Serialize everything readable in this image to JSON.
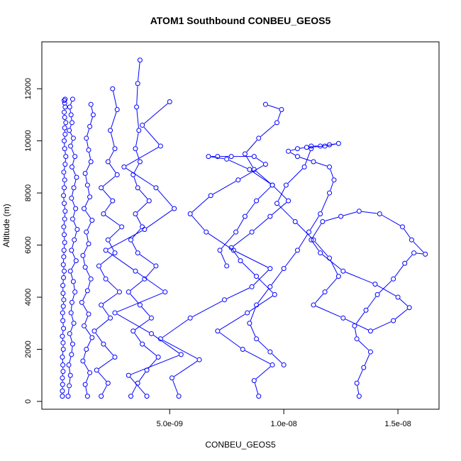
{
  "chart_data": {
    "type": "scatter",
    "title": "ATOM1 Southbound CONBEU_GEOS5",
    "xlabel": "CONBEU_GEOS5",
    "ylabel": "Altitude (m)",
    "xlim": [
      -6e-10,
      1.68e-08
    ],
    "ylim": [
      -300,
      13800
    ],
    "x_ticks": [
      5e-09,
      1e-08,
      1.5e-08
    ],
    "x_tick_labels": [
      "5.0e-09",
      "1.0e-08",
      "1.5e-08"
    ],
    "y_ticks": [
      0,
      2000,
      4000,
      6000,
      8000,
      10000,
      12000
    ],
    "y_tick_labels": [
      "0",
      "2000",
      "4000",
      "6000",
      "8000",
      "10000",
      "12000"
    ],
    "grid": false,
    "marker": "open-circle",
    "line_style": "connected",
    "color": "#0000FF",
    "series": [
      {
        "x": [
          3e-10,
          3e-10,
          3.1e-10,
          3e-10,
          3.3e-10,
          3.2e-10,
          3e-10,
          3.4e-10,
          3.3e-10,
          3e-10,
          3.5e-10,
          3.2e-10,
          3.1e-10,
          3.4e-10,
          3.6e-10,
          3.3e-10,
          3.2e-10,
          3.5e-10,
          3.8e-10,
          3.4e-10,
          3.6e-10,
          3.7e-10,
          4e-10,
          3.8e-10,
          3.6e-10,
          4e-10,
          4.2e-10,
          3.8e-10,
          3.5e-10,
          3.8e-10,
          4e-10,
          3.6e-10,
          4.2e-10,
          4.5e-10,
          4e-10,
          3.8e-10,
          4.2e-10,
          4e-10,
          4.5e-10,
          4e-10,
          3.8e-10,
          4.2e-10,
          4e-10,
          3.8e-10,
          4.2e-10
        ],
        "y": [
          200,
          400,
          650,
          900,
          1150,
          1400,
          1700,
          2000,
          2250,
          2500,
          2800,
          3100,
          3400,
          3650,
          3900,
          4150,
          4450,
          4750,
          5000,
          5250,
          5550,
          5800,
          6100,
          6400,
          6700,
          7000,
          7300,
          7600,
          7900,
          8200,
          8500,
          8800,
          9100,
          9400,
          9700,
          10000,
          10250,
          10500,
          10700,
          10900,
          11100,
          11300,
          11450,
          11550,
          11600
        ]
      },
      {
        "x": [
          5.5e-10,
          6e-10,
          6.5e-10,
          5.8e-10,
          7e-10,
          7.5e-10,
          6.2e-10,
          8e-10,
          6.8e-10,
          7.2e-10,
          8.5e-10,
          7.8e-10,
          6.5e-10,
          9e-10,
          7e-10,
          8.2e-10,
          9.5e-10,
          7.5e-10,
          8.8e-10,
          7e-10,
          8e-10,
          9.2e-10,
          7.2e-10,
          8.5e-10,
          6.6e-10,
          7.8e-10,
          6e-10,
          7.2e-10,
          6.8e-10,
          6.2e-10,
          7.5e-10
        ],
        "y": [
          200,
          600,
          1000,
          1400,
          1800,
          2200,
          2600,
          3000,
          3400,
          3800,
          4200,
          4600,
          5000,
          5400,
          5800,
          6200,
          6600,
          7000,
          7400,
          7800,
          8200,
          8600,
          9000,
          9400,
          9800,
          10100,
          10400,
          10700,
          11000,
          11300,
          11600
        ]
      },
      {
        "x": [
          1.4e-09,
          1.3e-09,
          1.5e-09,
          1.2e-09,
          1.35e-09,
          1.6e-09,
          1.25e-09,
          1.45e-09,
          1.15e-09,
          1.4e-09,
          1.55e-09,
          1.3e-09,
          1.2e-09,
          1.45e-09,
          1.35e-09,
          1.6e-09,
          1.25e-09,
          1.5e-09,
          1.4e-09,
          1.3e-09,
          1.55e-09,
          1.45e-09,
          1.35e-09,
          1.5e-09,
          1.65e-09,
          1.55e-09
        ],
        "y": [
          200,
          650,
          1100,
          1550,
          2000,
          2450,
          2900,
          3350,
          3800,
          4250,
          4700,
          5150,
          5600,
          6050,
          6500,
          6950,
          7400,
          7850,
          8300,
          8750,
          9200,
          9650,
          10100,
          10550,
          11000,
          11400
        ]
      },
      {
        "x": [
          2e-09,
          2.3e-09,
          1.8e-09,
          2.6e-09,
          2.1e-09,
          1.7e-09,
          2.4e-09,
          2e-09,
          2.8e-09,
          2.2e-09,
          1.9e-09,
          2.6e-09,
          2.3e-09,
          2.9e-09,
          2.1e-09,
          2.5e-09,
          2e-09,
          2.7e-09,
          2.3e-09,
          2.6e-09,
          2.4e-09,
          2.7e-09,
          2.5e-09
        ],
        "y": [
          200,
          700,
          1200,
          1700,
          2200,
          2700,
          3200,
          3700,
          4200,
          4700,
          5200,
          5700,
          6200,
          6700,
          7200,
          7700,
          8200,
          8700,
          9200,
          9700,
          10400,
          11200,
          12000
        ]
      },
      {
        "x": [
          3.3e-09,
          3.6e-09,
          4e-09,
          4.5e-09,
          3.8e-09,
          3.4e-09,
          4.2e-09,
          3.7e-09,
          3.2e-09,
          3.9e-09,
          4.4e-09,
          3.6e-09,
          3.3e-09,
          3.8e-09,
          3.5e-09,
          4.1e-09,
          3.6e-09,
          3.4e-09,
          3.7e-09,
          3.5e-09,
          3.65e-09,
          3.55e-09,
          3.6e-09,
          3.7e-09
        ],
        "y": [
          200,
          700,
          1200,
          1700,
          2200,
          2700,
          3200,
          3700,
          4200,
          4700,
          5200,
          5700,
          6200,
          6700,
          7200,
          7700,
          8200,
          8700,
          9200,
          9700,
          10400,
          11300,
          12200,
          13100
        ]
      },
      {
        "x": [
          4e-09,
          3.2e-09,
          5.5e-09,
          4.2e-09,
          2.6e-09,
          4.8e-09,
          3.5e-09,
          2.2e-09,
          3.9e-09,
          5.2e-09,
          4.4e-09,
          3e-09,
          4.6e-09,
          3.8e-09,
          5e-09
        ],
        "y": [
          200,
          1000,
          1800,
          2600,
          3400,
          4200,
          5000,
          5800,
          6600,
          7400,
          8200,
          9000,
          9800,
          10600,
          11500
        ]
      },
      {
        "x": [
          5.4e-09,
          5.1e-09,
          6.3e-09,
          4.6e-09,
          5.9e-09,
          7.4e-09,
          8.6e-09,
          9.4e-09,
          7.8e-09,
          6.6e-09,
          5.9e-09,
          6.8e-09,
          8e-09,
          9.2e-09,
          8.7e-09,
          7.7e-09,
          7.1e-09,
          6.7e-09,
          7.5e-09,
          8.5e-09,
          9.5e-09,
          8.8e-09,
          8.3e-09,
          7.9e-09,
          7.2e-09,
          7.5e-09
        ],
        "y": [
          200,
          900,
          1600,
          2400,
          3200,
          3900,
          4400,
          5100,
          5800,
          6500,
          7200,
          7900,
          8500,
          9100,
          9400,
          9400,
          9400,
          9400,
          9300,
          8900,
          8300,
          7700,
          7100,
          6500,
          5800,
          5200
        ]
      },
      {
        "x": [
          8.9e-09,
          8.7e-09,
          9.5e-09,
          8.2e-09,
          7.1e-09,
          8.4e-09,
          9.6e-09,
          8.8e-09,
          8.1e-09,
          7.7e-09,
          8.6e-09,
          9.4e-09,
          1.02e-08,
          9.5e-09,
          8.7e-09,
          8.3e-09,
          8.9e-09,
          9.7e-09,
          9.9e-09,
          9.2e-09
        ],
        "y": [
          200,
          800,
          1400,
          2000,
          2700,
          3400,
          4100,
          4800,
          5400,
          5900,
          6500,
          7100,
          7700,
          8300,
          8900,
          9500,
          10100,
          10700,
          11200,
          11400
        ]
      },
      {
        "x": [
          1.33e-08,
          1.32e-08,
          1.35e-08,
          1.38e-08,
          1.32e-08,
          1.31e-08,
          1.36e-08,
          1.41e-08,
          1.48e-08,
          1.53e-08,
          1.57e-08,
          1.62e-08,
          1.56e-08,
          1.52e-08,
          1.42e-08,
          1.33e-08,
          1.25e-08,
          1.17e-08,
          1.12e-08,
          1.16e-08,
          1.26e-08,
          1.4e-08,
          1.5e-08,
          1.55e-08,
          1.48e-08,
          1.38e-08,
          1.26e-08,
          1.13e-08,
          1.18e-08,
          1.24e-08,
          1.2e-08,
          1.13e-08,
          1.05e-08,
          9.7e-09,
          1.01e-08,
          1.09e-08,
          1.12e-08
        ],
        "y": [
          200,
          700,
          1300,
          1900,
          2400,
          2900,
          3500,
          4100,
          4700,
          5300,
          5700,
          5650,
          6200,
          6700,
          7200,
          7300,
          7100,
          6900,
          6200,
          5700,
          5000,
          4500,
          4000,
          3600,
          3100,
          2700,
          3200,
          3700,
          4200,
          4800,
          5500,
          6200,
          6900,
          7600,
          8300,
          9000,
          9700
        ]
      },
      {
        "x": [
          1.12e-08,
          1.16e-08,
          1.2e-08,
          1.24e-08,
          1.18e-08,
          1.1e-08,
          1.06e-08,
          1.02e-08,
          1.06e-08,
          1.13e-08,
          1.2e-08,
          1.22e-08,
          1.2e-08,
          1.16e-08,
          1.11e-08,
          1.06e-08,
          1e-08,
          9.4e-09,
          8.8e-09,
          8.5e-09,
          8.8e-09,
          9.4e-09,
          1e-08
        ],
        "y": [
          9800,
          9800,
          9850,
          9900,
          9800,
          9750,
          9700,
          9600,
          9400,
          9200,
          9000,
          8500,
          8000,
          7200,
          6500,
          5800,
          5100,
          4400,
          3700,
          3000,
          2400,
          1900,
          1400
        ]
      }
    ]
  }
}
